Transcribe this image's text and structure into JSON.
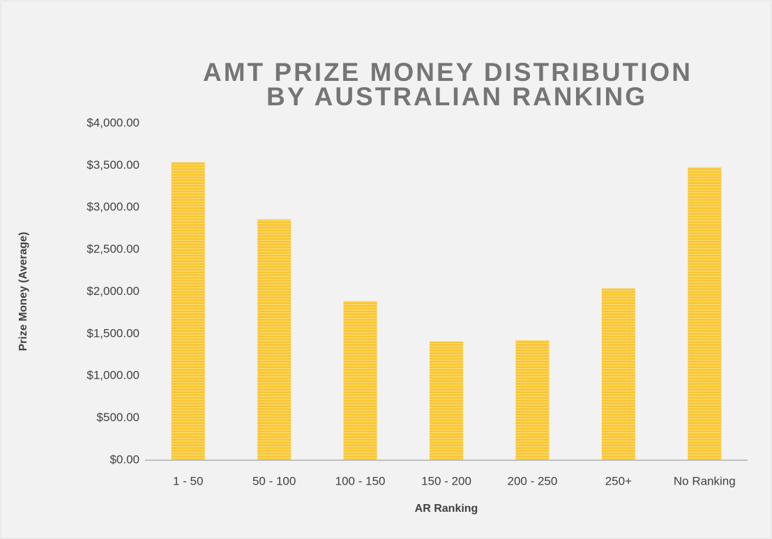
{
  "chart_data": {
    "type": "bar",
    "title": [
      "AMT PRIZE MONEY DISTRIBUTION",
      "BY AUSTRALIAN RANKING"
    ],
    "x_label": "AR Ranking",
    "y_label": "Prize Money (Average)",
    "categories": [
      "1 - 50",
      "50 - 100",
      "100 - 150",
      "150 - 200",
      "200 - 250",
      "250+",
      "No Ranking"
    ],
    "values": [
      3540,
      2860,
      1890,
      1410,
      1425,
      2040,
      3480
    ],
    "color": "#f9c631",
    "ylim": [
      0,
      4000
    ],
    "yticks": [
      {
        "value": 0,
        "label": "$0.00"
      },
      {
        "value": 500,
        "label": "$500.00"
      },
      {
        "value": 1000,
        "label": "$1,000.00"
      },
      {
        "value": 1500,
        "label": "$1,500.00"
      },
      {
        "value": 2000,
        "label": "$2,000.00"
      },
      {
        "value": 2500,
        "label": "$2,500.00"
      },
      {
        "value": 3000,
        "label": "$3,000.00"
      },
      {
        "value": 3500,
        "label": "$3,500.00"
      },
      {
        "value": 4000,
        "label": "$4,000.00"
      }
    ],
    "grid": false
  }
}
